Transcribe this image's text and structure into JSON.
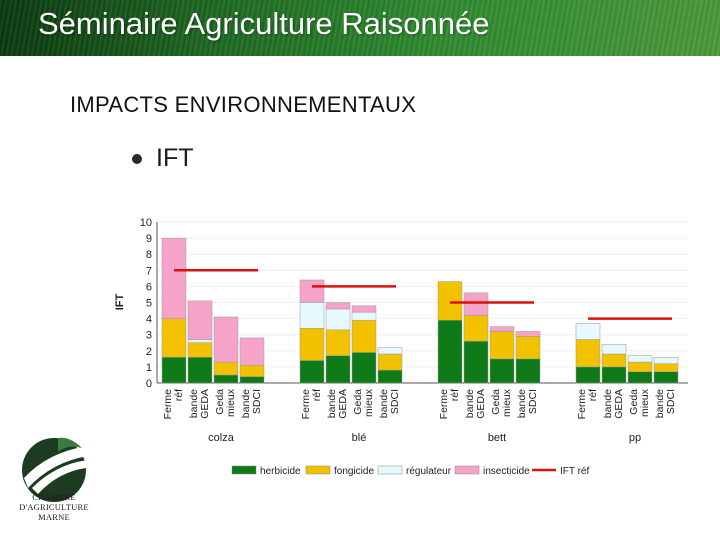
{
  "header": {
    "title": "Séminaire Agriculture Raisonnée"
  },
  "section": {
    "title": "IMPACTS ENVIRONNEMENTAUX"
  },
  "bullet": {
    "text": "IFT"
  },
  "logo": {
    "line1": "CHAMBRE",
    "line2": "D'AGRICULTURE",
    "line3": "MARNE"
  },
  "chart_data": {
    "type": "bar",
    "stacked": true,
    "ylabel": "IFT",
    "ylim": [
      0,
      10
    ],
    "yticks": [
      0,
      1,
      2,
      3,
      4,
      5,
      6,
      7,
      8,
      9,
      10
    ],
    "grid": true,
    "legend_position": "bottom",
    "colors": {
      "herbicide": "#0f7a18",
      "fongicide": "#f2c200",
      "regulateur": "#e8f8ff",
      "insecticide": "#f5a3c8",
      "ift_ref": "#dd1010"
    },
    "groups": [
      {
        "name": "colza",
        "ift_ref": 7.0,
        "categories": [
          "Ferme réf",
          "bande GEDA",
          "Geda mieux",
          "bande SDCI"
        ],
        "herbicide": [
          1.6,
          1.6,
          0.5,
          0.4
        ],
        "fongicide": [
          2.4,
          0.9,
          0.8,
          0.7
        ],
        "regulateur": [
          0,
          0.2,
          0,
          0
        ],
        "insecticide": [
          5.0,
          2.4,
          2.8,
          1.7
        ]
      },
      {
        "name": "blé",
        "ift_ref": 6.0,
        "categories": [
          "Ferme réf",
          "bande GEDA",
          "Geda mieux",
          "bande SDCI"
        ],
        "herbicide": [
          1.4,
          1.7,
          1.9,
          0.8
        ],
        "fongicide": [
          2.0,
          1.6,
          2.0,
          1.0
        ],
        "regulateur": [
          1.6,
          1.3,
          0.5,
          0.4
        ],
        "insecticide": [
          1.4,
          0.4,
          0.4,
          0
        ]
      },
      {
        "name": "bett",
        "ift_ref": 5.0,
        "categories": [
          "Ferme réf",
          "bande GEDA",
          "Geda mieux",
          "bande SDCI"
        ],
        "herbicide": [
          3.9,
          2.6,
          1.5,
          1.5
        ],
        "fongicide": [
          2.4,
          1.6,
          1.7,
          1.4
        ],
        "regulateur": [
          0,
          0,
          0,
          0
        ],
        "insecticide": [
          0,
          1.4,
          0.3,
          0.3
        ]
      },
      {
        "name": "pp",
        "ift_ref": 4.0,
        "categories": [
          "Ferme réf",
          "bande GEDA",
          "Geda mieux",
          "bande SDCI"
        ],
        "herbicide": [
          1.0,
          1.0,
          0.7,
          0.7
        ],
        "fongicide": [
          1.7,
          0.8,
          0.6,
          0.5
        ],
        "regulateur": [
          1.0,
          0.6,
          0.4,
          0.4
        ],
        "insecticide": [
          0,
          0,
          0,
          0
        ]
      }
    ],
    "legend": [
      {
        "key": "herbicide",
        "label": "herbicide"
      },
      {
        "key": "fongicide",
        "label": "fongicide"
      },
      {
        "key": "regulateur",
        "label": "régulateur"
      },
      {
        "key": "insecticide",
        "label": "insecticide"
      },
      {
        "key": "ift_ref",
        "label": "IFT réf"
      }
    ]
  }
}
